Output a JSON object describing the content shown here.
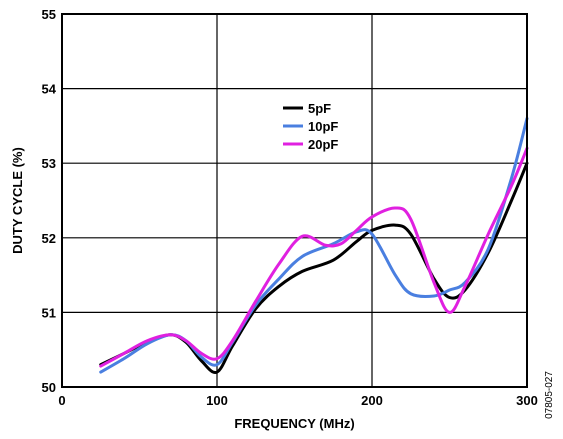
{
  "chart_data": {
    "type": "line",
    "title": "",
    "xlabel": "FREQUENCY (MHz)",
    "ylabel": "DUTY CYCLE (%)",
    "xlim": [
      0,
      300
    ],
    "ylim": [
      50,
      55
    ],
    "xticks": [
      0,
      100,
      200,
      300
    ],
    "yticks": [
      50,
      51,
      52,
      53,
      54,
      55
    ],
    "xtick_labels": [
      "0",
      "100",
      "200",
      "300"
    ],
    "ytick_labels": [
      "50",
      "51",
      "52",
      "53",
      "54",
      "55"
    ],
    "grid": true,
    "legend_position": "upper-center",
    "figure_id": "07805-027",
    "series": [
      {
        "name": "5pF",
        "color": "#000000",
        "x": [
          25,
          40,
          55,
          70,
          80,
          90,
          100,
          110,
          125,
          140,
          155,
          175,
          190,
          200,
          215,
          225,
          240,
          250,
          260,
          275,
          290,
          300
        ],
        "y": [
          50.3,
          50.45,
          50.6,
          50.7,
          50.6,
          50.35,
          50.2,
          50.55,
          51.05,
          51.35,
          51.55,
          51.7,
          51.95,
          52.1,
          52.17,
          52.05,
          51.45,
          51.2,
          51.3,
          51.8,
          52.5,
          53.0
        ]
      },
      {
        "name": "10pF",
        "color": "#4a7fe0",
        "x": [
          25,
          40,
          55,
          70,
          80,
          90,
          100,
          110,
          125,
          140,
          155,
          175,
          190,
          200,
          215,
          225,
          240,
          250,
          260,
          275,
          290,
          300
        ],
        "y": [
          50.2,
          50.38,
          50.58,
          50.7,
          50.62,
          50.4,
          50.3,
          50.6,
          51.1,
          51.45,
          51.75,
          51.92,
          52.08,
          52.05,
          51.5,
          51.25,
          51.22,
          51.3,
          51.4,
          51.85,
          52.8,
          53.6
        ]
      },
      {
        "name": "20pF",
        "color": "#e020e0",
        "x": [
          25,
          40,
          55,
          70,
          80,
          90,
          100,
          110,
          125,
          140,
          155,
          170,
          180,
          190,
          200,
          215,
          225,
          240,
          250,
          260,
          275,
          290,
          300
        ],
        "y": [
          50.28,
          50.45,
          50.62,
          50.7,
          50.62,
          50.45,
          50.38,
          50.62,
          51.15,
          51.65,
          52.02,
          51.9,
          51.92,
          52.1,
          52.28,
          52.4,
          52.25,
          51.4,
          51.0,
          51.35,
          52.05,
          52.7,
          53.2
        ]
      }
    ]
  }
}
